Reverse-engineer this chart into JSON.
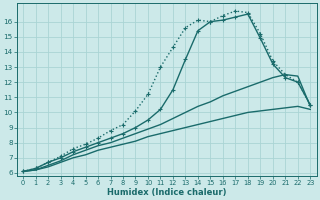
{
  "xlabel": "Humidex (Indice chaleur)",
  "bg_color": "#cce9e9",
  "line_color": "#1a6b6b",
  "grid_color": "#aad4d4",
  "xlim": [
    -0.5,
    23.5
  ],
  "ylim": [
    5.8,
    17.2
  ],
  "x_ticks": [
    0,
    1,
    2,
    3,
    4,
    5,
    6,
    7,
    8,
    9,
    10,
    11,
    12,
    13,
    14,
    15,
    16,
    17,
    18,
    19,
    20,
    21,
    22,
    23
  ],
  "y_ticks": [
    6,
    7,
    8,
    9,
    10,
    11,
    12,
    13,
    14,
    15,
    16
  ],
  "curves": [
    {
      "x": [
        0,
        1,
        2,
        3,
        4,
        5,
        6,
        7,
        8,
        9,
        10,
        11,
        12,
        13,
        14,
        15,
        16,
        17,
        18,
        19,
        20,
        21,
        22,
        23
      ],
      "y": [
        6.1,
        6.3,
        6.7,
        7.1,
        7.6,
        7.9,
        8.3,
        8.8,
        9.2,
        10.1,
        11.2,
        13.0,
        14.3,
        15.6,
        16.1,
        16.0,
        16.4,
        16.7,
        16.6,
        15.2,
        13.4,
        12.5,
        12.0,
        10.5
      ],
      "marker": "+",
      "lw": 1.0,
      "ls": ":"
    },
    {
      "x": [
        0,
        1,
        2,
        3,
        4,
        5,
        6,
        7,
        8,
        9,
        10,
        11,
        12,
        13,
        14,
        15,
        16,
        17,
        18,
        19,
        20,
        21,
        22,
        23
      ],
      "y": [
        6.1,
        6.3,
        6.7,
        7.0,
        7.4,
        7.7,
        8.0,
        8.3,
        8.6,
        9.0,
        9.5,
        10.2,
        11.5,
        13.5,
        15.4,
        16.0,
        16.1,
        16.3,
        16.5,
        14.9,
        13.2,
        12.3,
        12.0,
        10.5
      ],
      "marker": "+",
      "lw": 1.0,
      "ls": "-"
    },
    {
      "x": [
        0,
        1,
        2,
        3,
        4,
        5,
        6,
        7,
        8,
        9,
        10,
        11,
        12,
        13,
        14,
        15,
        16,
        17,
        18,
        19,
        20,
        21,
        22,
        23
      ],
      "y": [
        6.1,
        6.2,
        6.5,
        6.8,
        7.2,
        7.5,
        7.8,
        8.0,
        8.3,
        8.6,
        8.9,
        9.2,
        9.6,
        10.0,
        10.4,
        10.7,
        11.1,
        11.4,
        11.7,
        12.0,
        12.3,
        12.5,
        12.4,
        10.4
      ],
      "marker": null,
      "lw": 1.0,
      "ls": "-"
    },
    {
      "x": [
        0,
        1,
        2,
        3,
        4,
        5,
        6,
        7,
        8,
        9,
        10,
        11,
        12,
        13,
        14,
        15,
        16,
        17,
        18,
        19,
        20,
        21,
        22,
        23
      ],
      "y": [
        6.1,
        6.2,
        6.4,
        6.7,
        7.0,
        7.2,
        7.5,
        7.7,
        7.9,
        8.1,
        8.4,
        8.6,
        8.8,
        9.0,
        9.2,
        9.4,
        9.6,
        9.8,
        10.0,
        10.1,
        10.2,
        10.3,
        10.4,
        10.2
      ],
      "marker": null,
      "lw": 1.0,
      "ls": "-"
    }
  ]
}
